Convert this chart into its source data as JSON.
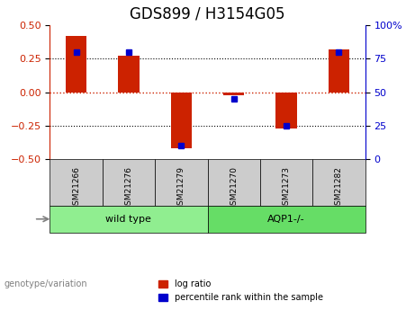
{
  "title": "GDS899 / H3154G05",
  "samples": [
    "GSM21266",
    "GSM21276",
    "GSM21279",
    "GSM21270",
    "GSM21273",
    "GSM21282"
  ],
  "log_ratio": [
    0.42,
    0.27,
    -0.42,
    -0.02,
    -0.27,
    0.32
  ],
  "percentile_rank": [
    80,
    80,
    10,
    45,
    25,
    80
  ],
  "ylim_left": [
    -0.5,
    0.5
  ],
  "ylim_right": [
    0,
    100
  ],
  "yticks_left": [
    -0.5,
    -0.25,
    0,
    0.25,
    0.5
  ],
  "yticks_right": [
    0,
    25,
    50,
    75,
    100
  ],
  "groups": [
    {
      "label": "wild type",
      "samples": [
        "GSM21266",
        "GSM21276",
        "GSM21279"
      ],
      "color": "#90ee90"
    },
    {
      "label": "AQP1-/-",
      "samples": [
        "GSM21270",
        "GSM21273",
        "GSM21282"
      ],
      "color": "#66dd66"
    }
  ],
  "bar_color": "#cc2200",
  "dot_color": "#0000cc",
  "bar_width": 0.4,
  "hline_color": "#cc2200",
  "hline_style": ":",
  "grid_style": ":",
  "grid_color": "black",
  "xlabel_color": "black",
  "left_axis_color": "#cc2200",
  "right_axis_color": "#0000cc",
  "bg_color": "white",
  "plot_bg_color": "white",
  "sample_box_color": "#cccccc",
  "genotype_label": "genotype/variation",
  "legend_log_ratio": "log ratio",
  "legend_percentile": "percentile rank within the sample",
  "title_fontsize": 12,
  "tick_fontsize": 8,
  "label_fontsize": 8
}
